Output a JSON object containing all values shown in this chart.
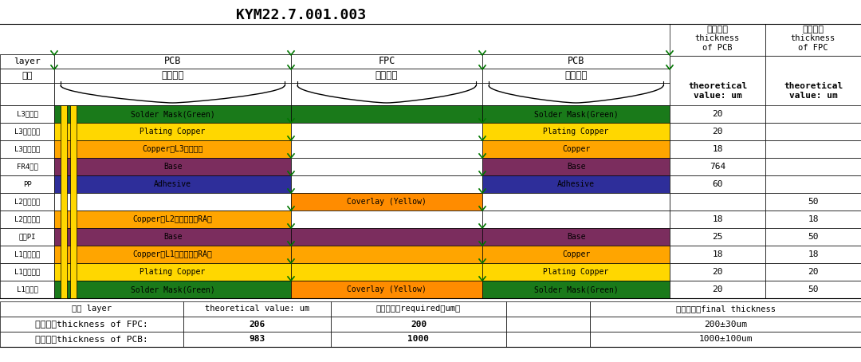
{
  "title": "KYM22.7.001.003",
  "layers": [
    {
      "label": "L3层防焚",
      "pcb_l_color": "#1a7a1a",
      "pcb_l_text": "Solder Mask(Green)",
      "fpc_ext": true,
      "fpc_color": null,
      "fpc_text": null,
      "pcb_r_color": "#1a7a1a",
      "pcb_r_text": "Solder Mask(Green)",
      "v_pcb": "20",
      "v_fpc": ""
    },
    {
      "label": "L3层电镀铜",
      "pcb_l_color": "#FFD700",
      "pcb_l_text": "Plating Copper",
      "fpc_ext": false,
      "fpc_color": null,
      "fpc_text": null,
      "pcb_r_color": "#FFD700",
      "pcb_r_text": "Plating Copper",
      "v_pcb": "20",
      "v_fpc": ""
    },
    {
      "label": "L3层基材铜",
      "pcb_l_color": "#FFA500",
      "pcb_l_text": "Copper（L3）基材铜",
      "fpc_ext": false,
      "fpc_color": null,
      "fpc_text": null,
      "pcb_r_color": "#FFA500",
      "pcb_r_text": "Copper",
      "v_pcb": "18",
      "v_fpc": ""
    },
    {
      "label": "FR4芯板",
      "pcb_l_color": "#7B2D5E",
      "pcb_l_text": "Base",
      "fpc_ext": false,
      "fpc_color": null,
      "fpc_text": null,
      "pcb_r_color": "#7B2D5E",
      "pcb_r_text": "Base",
      "v_pcb": "764",
      "v_fpc": ""
    },
    {
      "label": "PP",
      "pcb_l_color": "#2E2E9A",
      "pcb_l_text": "Adhesive",
      "fpc_ext": false,
      "fpc_color": null,
      "fpc_text": null,
      "pcb_r_color": "#2E2E9A",
      "pcb_r_text": "Adhesive",
      "v_pcb": "60",
      "v_fpc": ""
    },
    {
      "label": "L2层覆盖膜",
      "pcb_l_color": null,
      "pcb_l_text": null,
      "fpc_ext": false,
      "fpc_color": "#FF8C00",
      "fpc_text": "Coverlay (Yellow)",
      "pcb_r_color": null,
      "pcb_r_text": null,
      "v_pcb": "",
      "v_fpc": "50"
    },
    {
      "label": "L2层基材铜",
      "pcb_l_color": "#FFA500",
      "pcb_l_text": "Copper（L2）基材铜（RA）",
      "fpc_ext": false,
      "fpc_color": null,
      "fpc_text": null,
      "pcb_r_color": null,
      "pcb_r_text": null,
      "v_pcb": "18",
      "v_fpc": "18"
    },
    {
      "label": "基材PI",
      "pcb_l_color": "#7B2D5E",
      "pcb_l_text": "Base",
      "fpc_ext": true,
      "fpc_color": null,
      "fpc_text": null,
      "pcb_r_color": "#7B2D5E",
      "pcb_r_text": "Base",
      "v_pcb": "25",
      "v_fpc": "50"
    },
    {
      "label": "L1层基材铜",
      "pcb_l_color": "#FFA500",
      "pcb_l_text": "Copper（L1）基材铜（RA）",
      "fpc_ext": true,
      "fpc_color": null,
      "fpc_text": null,
      "pcb_r_color": "#FFA500",
      "pcb_r_text": "Copper",
      "v_pcb": "18",
      "v_fpc": "18"
    },
    {
      "label": "L1层电镀铜",
      "pcb_l_color": "#FFD700",
      "pcb_l_text": "Plating Copper",
      "fpc_ext": true,
      "fpc_color": null,
      "fpc_text": null,
      "pcb_r_color": "#FFD700",
      "pcb_r_text": "Plating Copper",
      "v_pcb": "20",
      "v_fpc": "20"
    },
    {
      "label": "L1层防焚",
      "pcb_l_color": "#1a7a1a",
      "pcb_l_text": "Solder Mask(Green)",
      "fpc_ext": false,
      "fpc_color": "#FF8C00",
      "fpc_text": "Coverlay (Yellow)",
      "pcb_r_color": "#1a7a1a",
      "pcb_r_text": "Solder Mask(Green)",
      "v_pcb": "20",
      "v_fpc": "50"
    }
  ],
  "summ_hdr": [
    "层别 layer",
    "theoretical value: um",
    "客户要求値required（um）",
    "",
    "我司管控値final thickness"
  ],
  "summ_fpc": [
    "软板厚度thickness of FPC:",
    "206",
    "200",
    "",
    "200±30um"
  ],
  "summ_pcb": [
    "硬板厚度thickness of PCB:",
    "983",
    "1000",
    "",
    "1000±100um"
  ]
}
